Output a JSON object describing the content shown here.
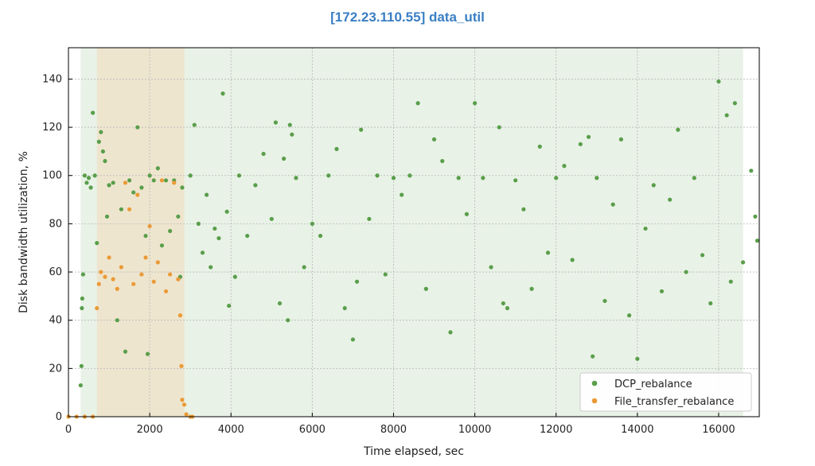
{
  "chart_data": {
    "type": "scatter",
    "title": "[172.23.110.55] data_util",
    "xlabel": "Time elapsed, sec",
    "ylabel": "Disk bandwidth utilization, %",
    "xlim": [
      0,
      17000
    ],
    "ylim": [
      0,
      153
    ],
    "xticks": [
      0,
      2000,
      4000,
      6000,
      8000,
      10000,
      12000,
      14000,
      16000
    ],
    "yticks": [
      0,
      20,
      40,
      60,
      80,
      100,
      120,
      140
    ],
    "grid": true,
    "legend_position": "bottom-right",
    "shaded_regions": [
      {
        "x0": 300,
        "x1": 16600,
        "color": "#e8f2e6"
      },
      {
        "x0": 700,
        "x1": 2850,
        "color": "#eee5cf"
      }
    ],
    "series": [
      {
        "name": "DCP_rebalance",
        "color": "#5a9e4b",
        "points": [
          [
            300,
            13
          ],
          [
            320,
            21
          ],
          [
            330,
            45
          ],
          [
            340,
            49
          ],
          [
            360,
            59
          ],
          [
            400,
            100
          ],
          [
            450,
            97
          ],
          [
            500,
            99
          ],
          [
            550,
            95
          ],
          [
            600,
            126
          ],
          [
            650,
            100
          ],
          [
            700,
            72
          ],
          [
            750,
            114
          ],
          [
            800,
            118
          ],
          [
            850,
            110
          ],
          [
            900,
            106
          ],
          [
            950,
            83
          ],
          [
            1000,
            96
          ],
          [
            1100,
            97
          ],
          [
            1200,
            40
          ],
          [
            1300,
            86
          ],
          [
            1400,
            27
          ],
          [
            1500,
            98
          ],
          [
            1600,
            93
          ],
          [
            1700,
            120
          ],
          [
            1800,
            95
          ],
          [
            1900,
            75
          ],
          [
            1950,
            26
          ],
          [
            2000,
            100
          ],
          [
            2100,
            98
          ],
          [
            2200,
            103
          ],
          [
            2300,
            71
          ],
          [
            2400,
            98
          ],
          [
            2500,
            77
          ],
          [
            2600,
            98
          ],
          [
            2700,
            83
          ],
          [
            2750,
            58
          ],
          [
            2800,
            95
          ],
          [
            3000,
            100
          ],
          [
            3100,
            121
          ],
          [
            3200,
            80
          ],
          [
            3300,
            68
          ],
          [
            3400,
            92
          ],
          [
            3500,
            62
          ],
          [
            3600,
            78
          ],
          [
            3700,
            74
          ],
          [
            3800,
            134
          ],
          [
            3900,
            85
          ],
          [
            3950,
            46
          ],
          [
            4100,
            58
          ],
          [
            4200,
            100
          ],
          [
            4400,
            75
          ],
          [
            4600,
            96
          ],
          [
            4800,
            109
          ],
          [
            5000,
            82
          ],
          [
            5100,
            122
          ],
          [
            5200,
            47
          ],
          [
            5300,
            107
          ],
          [
            5400,
            40
          ],
          [
            5450,
            121
          ],
          [
            5500,
            117
          ],
          [
            5600,
            99
          ],
          [
            5800,
            62
          ],
          [
            6000,
            80
          ],
          [
            6200,
            75
          ],
          [
            6400,
            100
          ],
          [
            6600,
            111
          ],
          [
            6800,
            45
          ],
          [
            7000,
            32
          ],
          [
            7100,
            56
          ],
          [
            7200,
            119
          ],
          [
            7400,
            82
          ],
          [
            7600,
            100
          ],
          [
            7800,
            59
          ],
          [
            8000,
            99
          ],
          [
            8200,
            92
          ],
          [
            8400,
            100
          ],
          [
            8600,
            130
          ],
          [
            8800,
            53
          ],
          [
            9000,
            115
          ],
          [
            9200,
            106
          ],
          [
            9400,
            35
          ],
          [
            9600,
            99
          ],
          [
            9800,
            84
          ],
          [
            10000,
            130
          ],
          [
            10200,
            99
          ],
          [
            10400,
            62
          ],
          [
            10600,
            120
          ],
          [
            10700,
            47
          ],
          [
            10800,
            45
          ],
          [
            11000,
            98
          ],
          [
            11200,
            86
          ],
          [
            11400,
            53
          ],
          [
            11600,
            112
          ],
          [
            11800,
            68
          ],
          [
            12000,
            99
          ],
          [
            12200,
            104
          ],
          [
            12400,
            65
          ],
          [
            12600,
            113
          ],
          [
            12800,
            116
          ],
          [
            12900,
            25
          ],
          [
            13000,
            99
          ],
          [
            13200,
            48
          ],
          [
            13400,
            88
          ],
          [
            13600,
            115
          ],
          [
            13800,
            42
          ],
          [
            14000,
            24
          ],
          [
            14200,
            78
          ],
          [
            14400,
            96
          ],
          [
            14600,
            52
          ],
          [
            14800,
            90
          ],
          [
            15000,
            119
          ],
          [
            15200,
            60
          ],
          [
            15400,
            99
          ],
          [
            15600,
            67
          ],
          [
            15800,
            47
          ],
          [
            16000,
            139
          ],
          [
            16200,
            125
          ],
          [
            16300,
            56
          ],
          [
            16400,
            130
          ],
          [
            16600,
            64
          ],
          [
            16800,
            102
          ],
          [
            16900,
            83
          ],
          [
            16950,
            73
          ]
        ]
      },
      {
        "name": "File_transfer_rebalance",
        "color": "#ea9a35",
        "points": [
          [
            0,
            0
          ],
          [
            200,
            0
          ],
          [
            400,
            0
          ],
          [
            600,
            0
          ],
          [
            700,
            45
          ],
          [
            750,
            55
          ],
          [
            800,
            60
          ],
          [
            900,
            58
          ],
          [
            1000,
            66
          ],
          [
            1100,
            57
          ],
          [
            1200,
            53
          ],
          [
            1300,
            62
          ],
          [
            1400,
            97
          ],
          [
            1500,
            86
          ],
          [
            1600,
            55
          ],
          [
            1700,
            92
          ],
          [
            1800,
            59
          ],
          [
            1900,
            66
          ],
          [
            2000,
            79
          ],
          [
            2100,
            56
          ],
          [
            2200,
            64
          ],
          [
            2300,
            98
          ],
          [
            2400,
            52
          ],
          [
            2500,
            59
          ],
          [
            2600,
            97
          ],
          [
            2700,
            57
          ],
          [
            2750,
            42
          ],
          [
            2780,
            21
          ],
          [
            2800,
            7
          ],
          [
            2850,
            5
          ],
          [
            2900,
            1
          ],
          [
            3000,
            0
          ],
          [
            3050,
            0
          ]
        ]
      }
    ]
  }
}
